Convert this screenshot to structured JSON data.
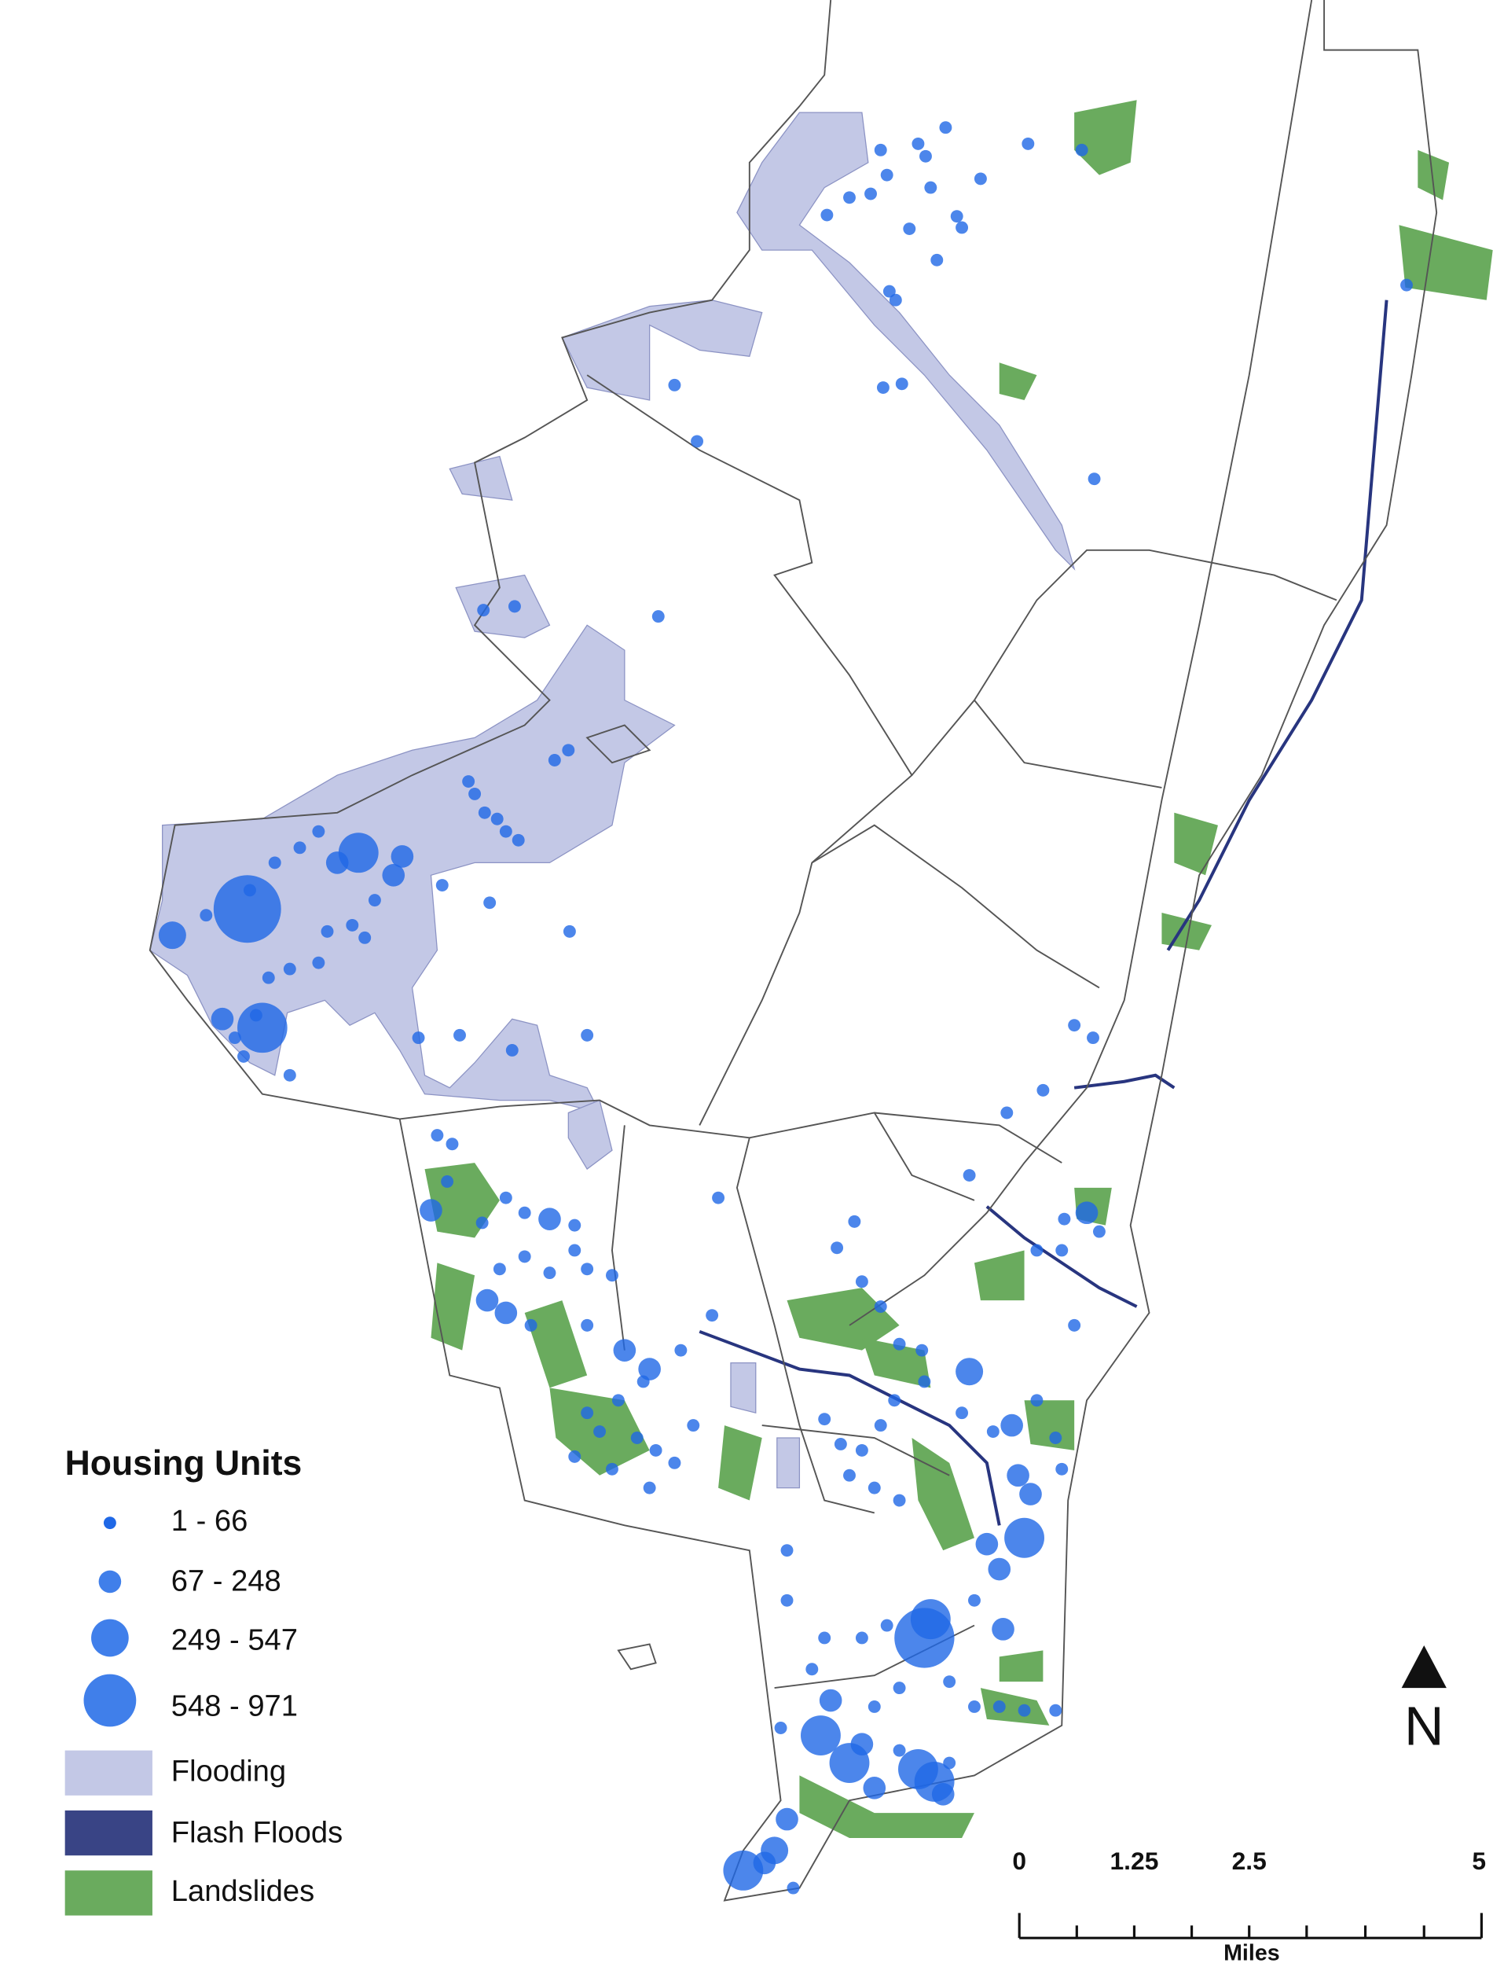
{
  "legend": {
    "title": "Housing Units",
    "items": [
      {
        "label": "1 - 66"
      },
      {
        "label": "67 - 248"
      },
      {
        "label": "249 - 547"
      },
      {
        "label": "548 - 971"
      },
      {
        "label": "Flooding"
      },
      {
        "label": "Flash Floods"
      },
      {
        "label": "Landslides"
      }
    ]
  },
  "scale_bar": {
    "ticks": [
      "0",
      "1.25",
      "2.5",
      "5"
    ],
    "unit": "Miles"
  },
  "north_arrow": {
    "label": "N"
  }
}
